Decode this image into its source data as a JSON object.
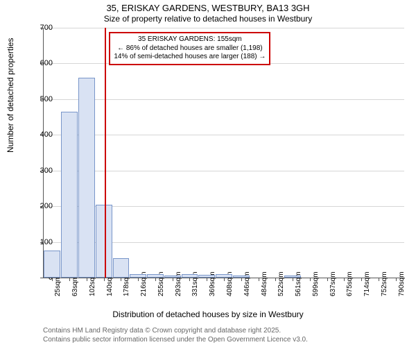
{
  "title": "35, ERISKAY GARDENS, WESTBURY, BA13 3GH",
  "subtitle": "Size of property relative to detached houses in Westbury",
  "ylabel": "Number of detached properties",
  "xlabel": "Distribution of detached houses by size in Westbury",
  "footer_line1": "Contains HM Land Registry data © Crown copyright and database right 2025.",
  "footer_line2": "Contains public sector information licensed under the Open Government Licence v3.0.",
  "chart": {
    "type": "histogram",
    "ylim": [
      0,
      700
    ],
    "ytick_step": 100,
    "bar_fill": "#d9e2f3",
    "bar_border": "#7895c9",
    "grid_color": "#d6d6d6",
    "background_color": "#ffffff",
    "marker_color": "#cc0000",
    "marker_x_value": 155,
    "x_min": 25,
    "x_max": 790,
    "categories": [
      "25sqm",
      "63sqm",
      "102sqm",
      "140sqm",
      "178sqm",
      "216sqm",
      "255sqm",
      "293sqm",
      "331sqm",
      "369sqm",
      "408sqm",
      "446sqm",
      "484sqm",
      "522sqm",
      "561sqm",
      "599sqm",
      "637sqm",
      "675sqm",
      "714sqm",
      "752sqm",
      "790sqm"
    ],
    "values": [
      75,
      465,
      560,
      205,
      55,
      10,
      10,
      5,
      10,
      8,
      10,
      5,
      0,
      0,
      5,
      0,
      0,
      0,
      0,
      0,
      0
    ]
  },
  "annotation": {
    "line1": "35 ERISKAY GARDENS: 155sqm",
    "line2": "← 86% of detached houses are smaller (1,198)",
    "line3": "14% of semi-detached houses are larger (188) →"
  }
}
